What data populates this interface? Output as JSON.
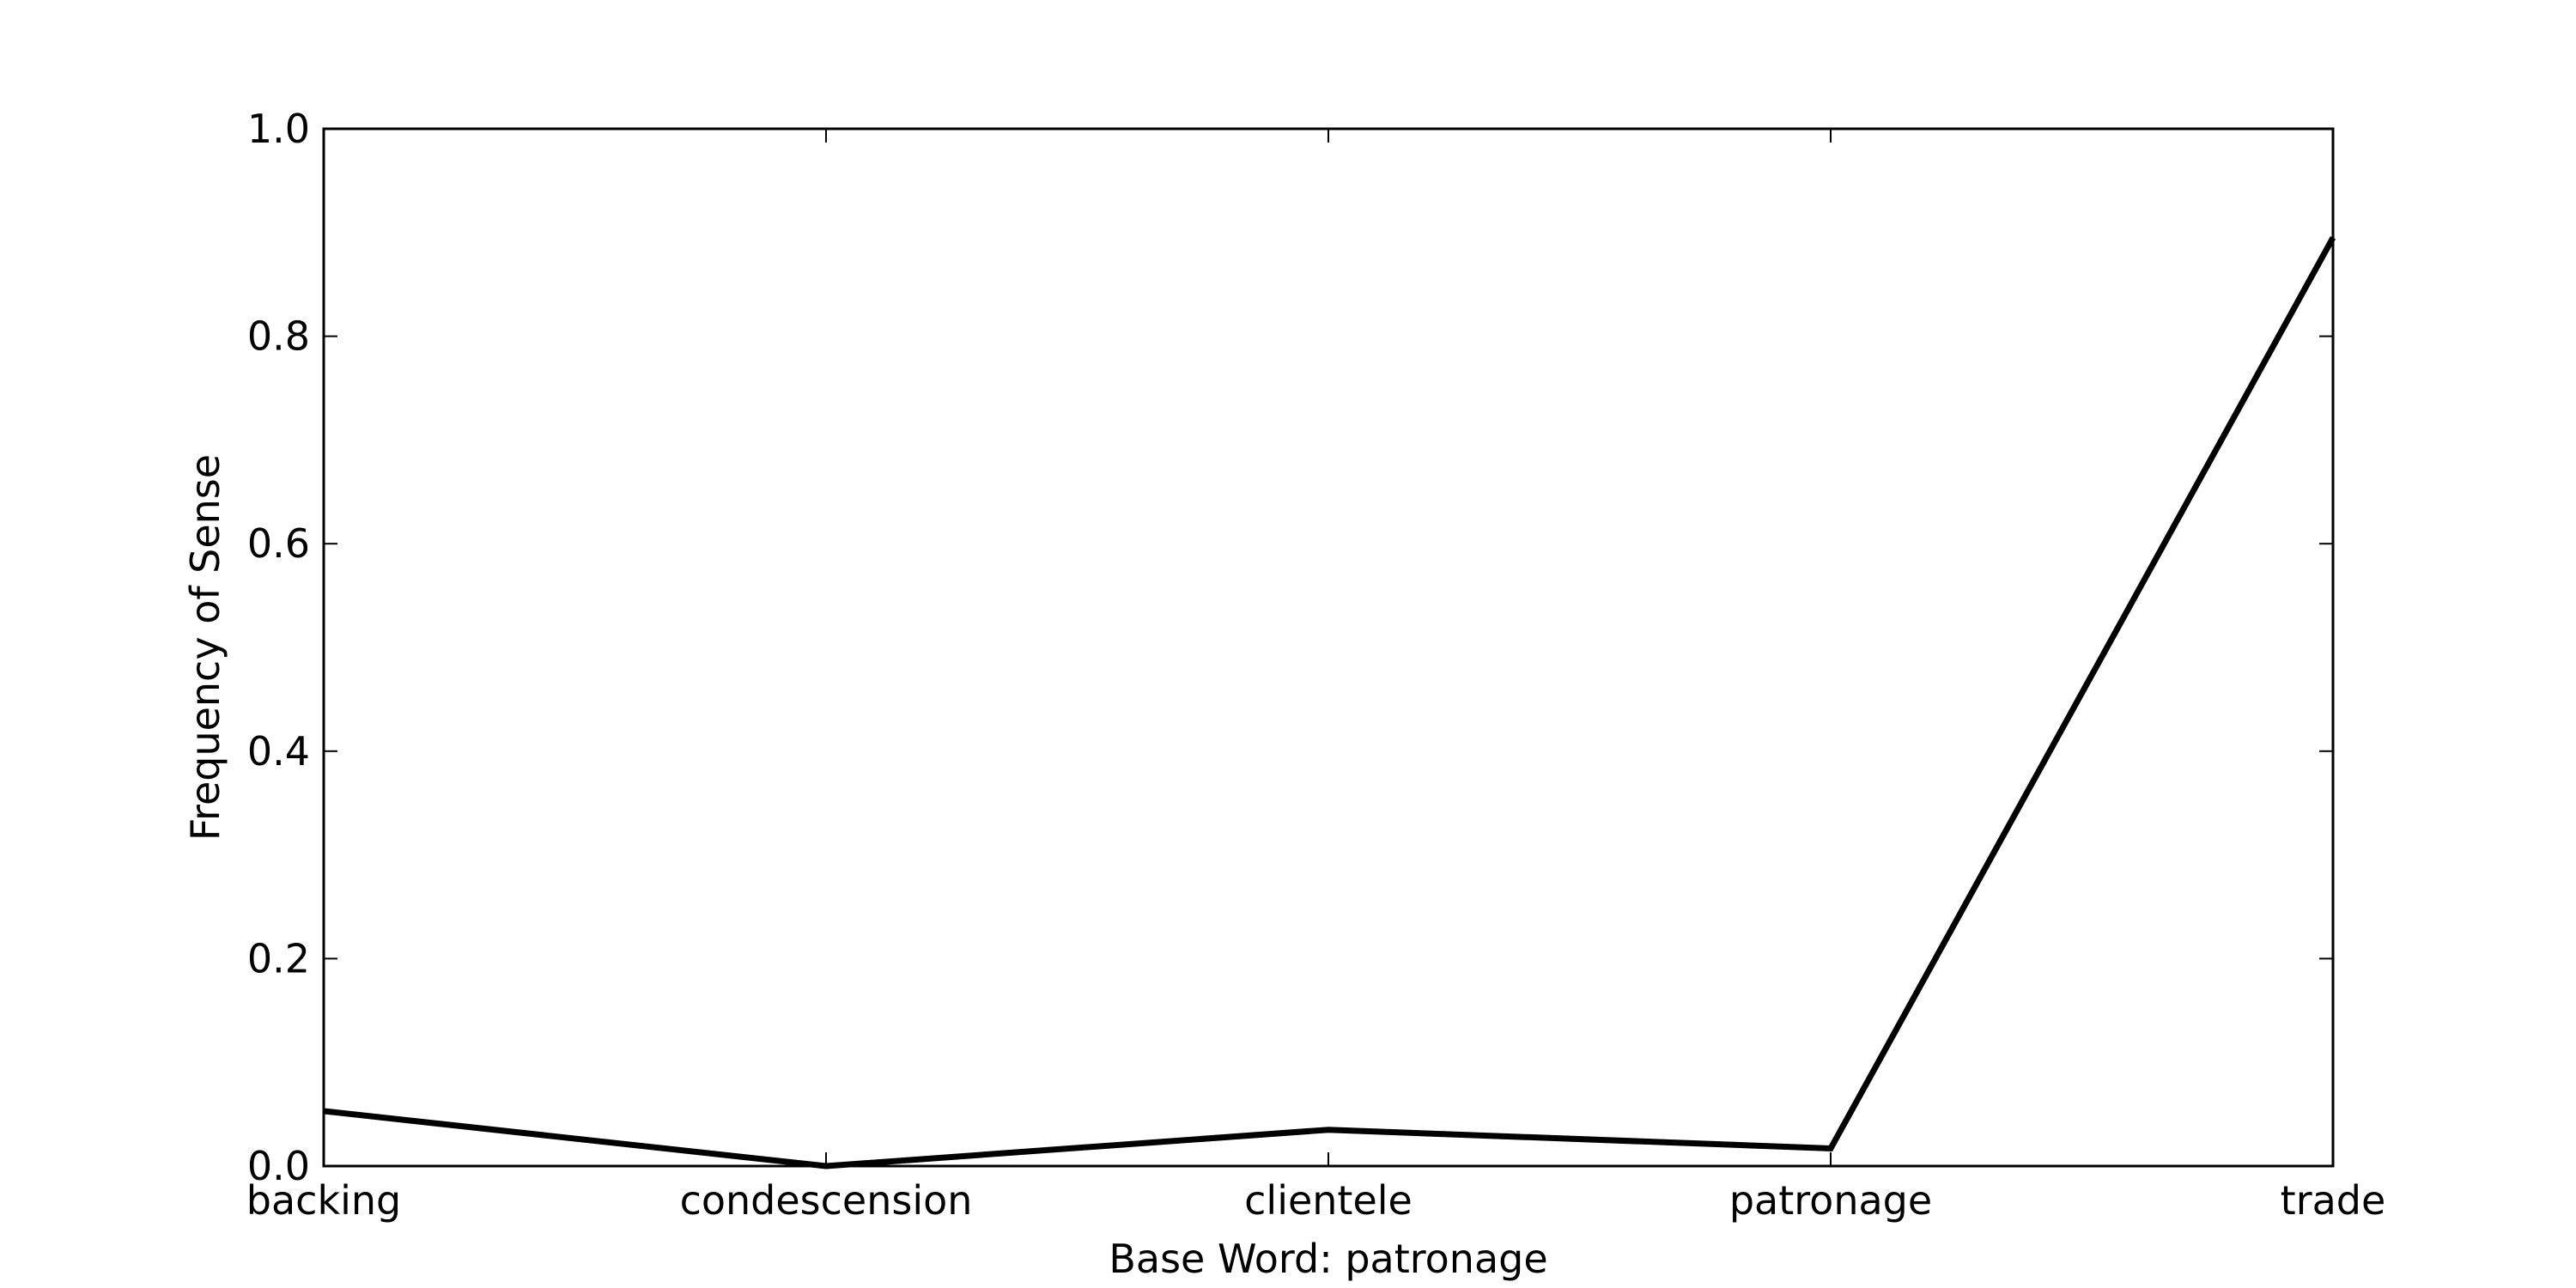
{
  "chart_data": {
    "type": "line",
    "categories": [
      "backing",
      "condescension",
      "clientele",
      "patronage",
      "trade"
    ],
    "values": [
      0.053,
      0.0,
      0.035,
      0.017,
      0.895
    ],
    "xlabel": "Base Word: patronage",
    "ylabel": "Frequency of Sense",
    "ylim": [
      0,
      1.0
    ],
    "yticks": [
      "0.0",
      "0.2",
      "0.4",
      "0.6",
      "0.8",
      "1.0"
    ],
    "grid": false,
    "line_color": "#000000"
  }
}
